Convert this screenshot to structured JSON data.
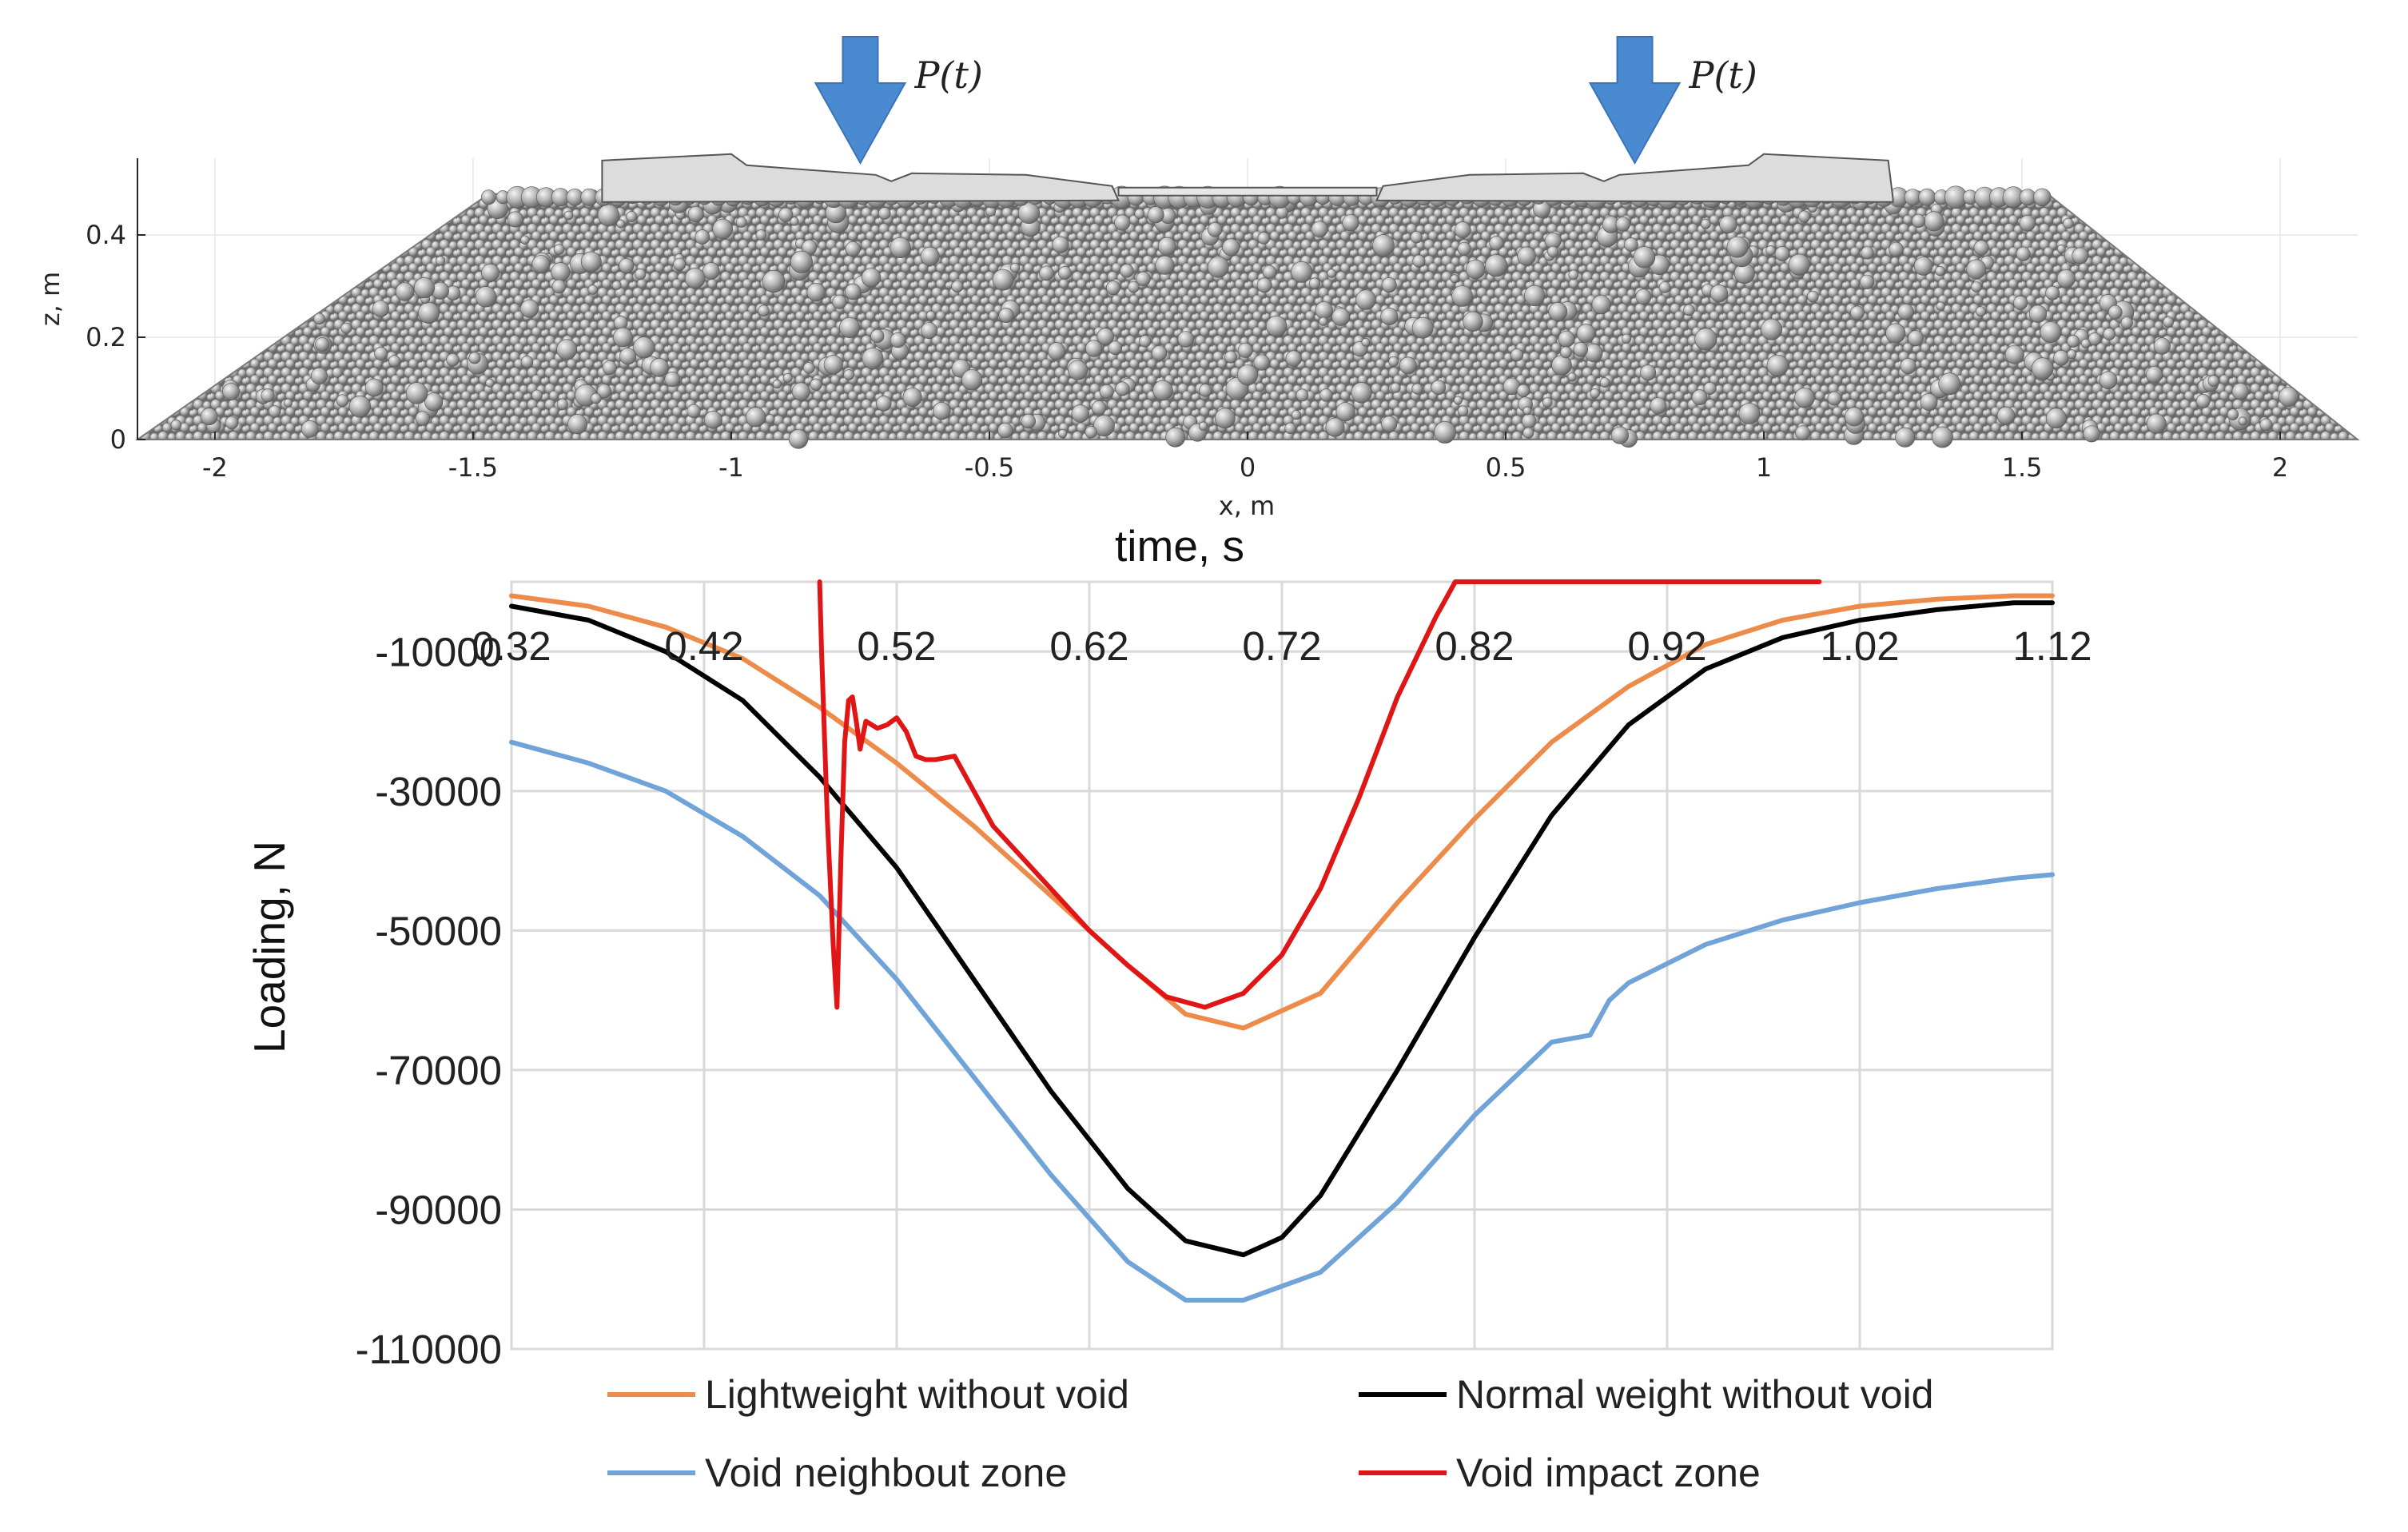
{
  "chart_data": [
    {
      "type": "scatter",
      "title": "",
      "xlabel": "x, m",
      "ylabel": "z, m",
      "xlim": [
        -2.15,
        2.15
      ],
      "ylim": [
        0,
        0.55
      ],
      "x_ticks": [
        "-2",
        "-1.5",
        "-1",
        "-0.5",
        "0",
        "0.5",
        "1",
        "1.5",
        "2"
      ],
      "y_ticks": [
        "0",
        "0.2",
        "0.4"
      ],
      "grid": true,
      "ballast_profile": {
        "x": [
          -2.15,
          -1.47,
          1.55,
          2.15
        ],
        "z": [
          0,
          0.48,
          0.48,
          0
        ]
      },
      "sleepers": [
        {
          "x": [
            -1.25,
            -0.25
          ],
          "z": [
            0.48,
            0.53
          ]
        },
        {
          "x": [
            0.25,
            1.25
          ],
          "z": [
            0.48,
            0.53
          ]
        }
      ],
      "loads": [
        {
          "label": "P(t)",
          "x": -0.75
        },
        {
          "label": "P(t)",
          "x": 0.75
        }
      ]
    },
    {
      "type": "line",
      "title": "",
      "xlabel": "time, s",
      "ylabel": "Loading, N",
      "xlim": [
        0.32,
        1.12
      ],
      "ylim": [
        -110000,
        0
      ],
      "x_tick_values": [
        0.32,
        0.42,
        0.52,
        0.62,
        0.72,
        0.82,
        0.92,
        1.02,
        1.12
      ],
      "x_ticks": [
        "0.32",
        "0.42",
        "0.52",
        "0.62",
        "0.72",
        "0.82",
        "0.92",
        "1.02",
        "1.12"
      ],
      "y_tick_values": [
        -10000,
        -30000,
        -50000,
        -70000,
        -90000,
        -110000
      ],
      "y_ticks": [
        "-10000",
        "-30000",
        "-50000",
        "-70000",
        "-90000",
        "-110000"
      ],
      "grid": true,
      "legend_position": "bottom",
      "series": [
        {
          "name": "Lightweight without void",
          "color": "#ED8B4A",
          "x": [
            0.32,
            0.36,
            0.4,
            0.44,
            0.48,
            0.52,
            0.56,
            0.6,
            0.64,
            0.67,
            0.7,
            0.74,
            0.78,
            0.82,
            0.86,
            0.9,
            0.94,
            0.98,
            1.02,
            1.06,
            1.1,
            1.12
          ],
          "y": [
            -2000,
            -3500,
            -6500,
            -11000,
            -18000,
            -26000,
            -35000,
            -45000,
            -55000,
            -62000,
            -64000,
            -59000,
            -46000,
            -34000,
            -23000,
            -15000,
            -9000,
            -5500,
            -3500,
            -2500,
            -2000,
            -2000
          ]
        },
        {
          "name": "Normal weight without void",
          "color": "#000000",
          "x": [
            0.32,
            0.36,
            0.4,
            0.44,
            0.48,
            0.52,
            0.56,
            0.6,
            0.64,
            0.67,
            0.7,
            0.72,
            0.74,
            0.78,
            0.82,
            0.86,
            0.9,
            0.94,
            0.98,
            1.02,
            1.06,
            1.1,
            1.12
          ],
          "y": [
            -3500,
            -5500,
            -10000,
            -17000,
            -28000,
            -41000,
            -57000,
            -73000,
            -87000,
            -94500,
            -96500,
            -94000,
            -88000,
            -70000,
            -51000,
            -33500,
            -20500,
            -12500,
            -8000,
            -5500,
            -4000,
            -3000,
            -3000
          ]
        },
        {
          "name": "Void neighbout zone",
          "color": "#70A3D8",
          "x": [
            0.32,
            0.36,
            0.4,
            0.44,
            0.48,
            0.52,
            0.56,
            0.6,
            0.64,
            0.67,
            0.7,
            0.74,
            0.78,
            0.82,
            0.86,
            0.88,
            0.89,
            0.9,
            0.94,
            0.98,
            1.02,
            1.06,
            1.1,
            1.12
          ],
          "y": [
            -23000,
            -26000,
            -30000,
            -36500,
            -45000,
            -57000,
            -71000,
            -85000,
            -97500,
            -103000,
            -103000,
            -99000,
            -89000,
            -76500,
            -66000,
            -65000,
            -60000,
            -57500,
            -52000,
            -48500,
            -46000,
            -44000,
            -42500,
            -42000
          ]
        },
        {
          "name": "Void impact zone",
          "color": "#E01515",
          "x": [
            0.48,
            0.481,
            0.484,
            0.487,
            0.489,
            0.491,
            0.493,
            0.495,
            0.497,
            0.499,
            0.501,
            0.504,
            0.51,
            0.515,
            0.52,
            0.525,
            0.53,
            0.535,
            0.54,
            0.55,
            0.56,
            0.57,
            0.58,
            0.6,
            0.62,
            0.64,
            0.66,
            0.68,
            0.7,
            0.72,
            0.74,
            0.76,
            0.78,
            0.8,
            0.81,
            0.82,
            0.83,
            0.84,
            0.86,
            0.88,
            0.9,
            0.92,
            0.94,
            0.96,
            0.98,
            0.999
          ],
          "y": [
            0,
            -10000,
            -34000,
            -52000,
            -61000,
            -40000,
            -23000,
            -17000,
            -16500,
            -20000,
            -24000,
            -20000,
            -21000,
            -20500,
            -19500,
            -21500,
            -25000,
            -25500,
            -25500,
            -25000,
            -30000,
            -35000,
            -38000,
            -44000,
            -50000,
            -55000,
            -59500,
            -61000,
            -59000,
            -53500,
            -44000,
            -31000,
            -16500,
            -5000,
            0,
            0,
            0,
            0,
            0,
            0,
            0,
            0,
            0,
            0,
            0,
            0
          ]
        }
      ]
    }
  ]
}
